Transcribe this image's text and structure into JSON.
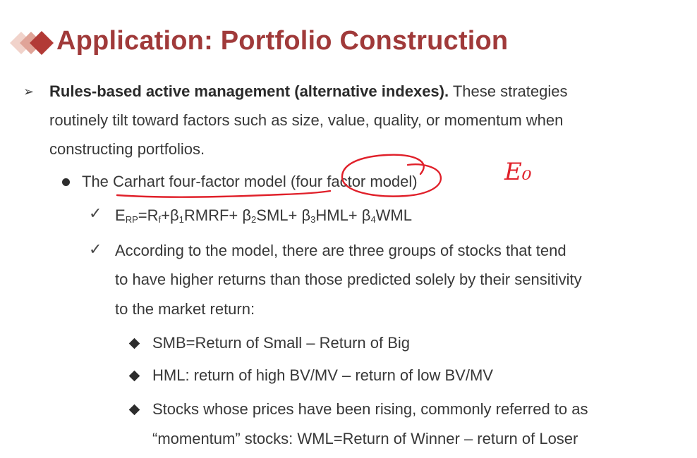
{
  "title": "Application: Portfolio Construction",
  "bullet1": {
    "lead": "Rules-based active management (alternative indexes).",
    "rest_line1": " These strategies",
    "line2": "routinely tilt toward factors such as size, value, quality, or momentum when",
    "line3": "constructing portfolios."
  },
  "model": {
    "text": "The Carhart four-factor model (four factor model)"
  },
  "formula": {
    "e": "E",
    "e_sub": "RP",
    "eq_rf": "=R",
    "rf_sub": "f",
    "t1": "+β",
    "s1": "1",
    "t2": "RMRF+ β",
    "s2": "2",
    "t3": "SML+ β",
    "s3": "3",
    "t4": "HML+ β",
    "s4": "4",
    "t5": "WML"
  },
  "explanation": {
    "line1": "According to the model, there are three groups of stocks that tend",
    "line2": "to have higher returns than those predicted solely by their sensitivity",
    "line3": "to the market return:"
  },
  "groups": {
    "smb": "SMB=Return of Small – Return of Big",
    "hml": "HML:  return of high BV/MV – return of low BV/MV",
    "wml_line1": "Stocks whose prices have been rising, commonly referred to as",
    "wml_line2": "“momentum” stocks: WML=Return of Winner – return of Loser"
  },
  "handwriting": {
    "text": "E₀",
    "color": "#e0202a"
  },
  "colors": {
    "title": "#a03a3a",
    "logo_dark": "#b23a36",
    "logo_light": "#e6b5aa"
  }
}
